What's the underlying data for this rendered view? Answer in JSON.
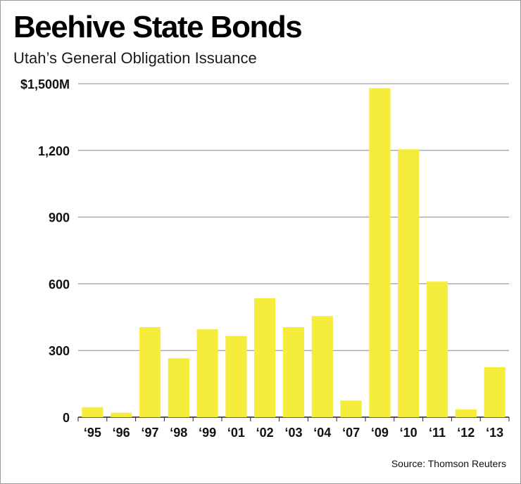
{
  "chart_data": {
    "type": "bar",
    "title": "Beehive State Bonds",
    "subtitle": "Utah’s General Obligation Issuance",
    "source": "Source: Thomson Reuters",
    "categories": [
      "‘95",
      "‘96",
      "‘97",
      "‘98",
      "‘99",
      "‘01",
      "‘02",
      "‘03",
      "‘04",
      "‘07",
      "‘09",
      "‘10",
      "‘11",
      "‘12",
      "‘13"
    ],
    "values": [
      45,
      20,
      405,
      265,
      395,
      365,
      535,
      405,
      455,
      75,
      1480,
      1205,
      610,
      35,
      225
    ],
    "ylim": [
      0,
      1500
    ],
    "yticks": [
      {
        "value": 0,
        "label": "0"
      },
      {
        "value": 300,
        "label": "300"
      },
      {
        "value": 600,
        "label": "600"
      },
      {
        "value": 900,
        "label": "900"
      },
      {
        "value": 1200,
        "label": "1,200"
      },
      {
        "value": 1500,
        "label": "$1,500M"
      }
    ],
    "grid": true,
    "bar_color": "#f5ec3c",
    "grid_color": "#8a8a8a"
  }
}
